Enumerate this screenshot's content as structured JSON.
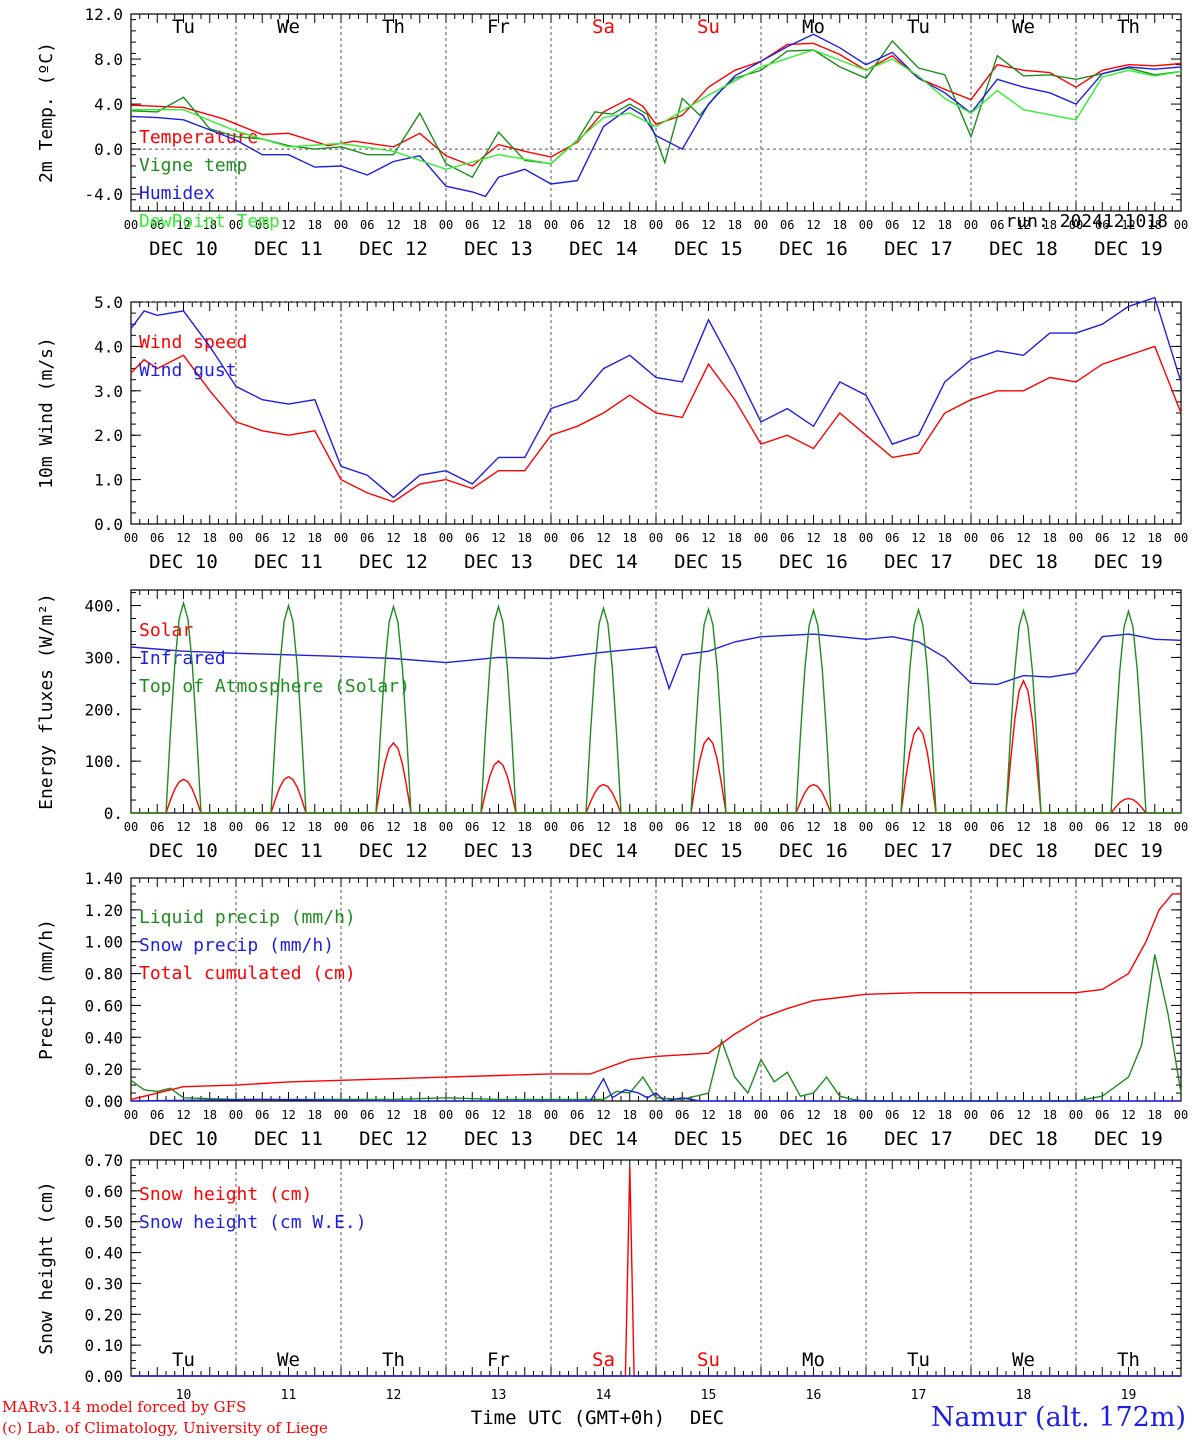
{
  "colors": {
    "red": "#ff0000",
    "green": "#1e8c1e",
    "blue": "#1f1fe0",
    "lightgreen": "#33ee33"
  },
  "days": [
    "Tu",
    "We",
    "Th",
    "Fr",
    "Sa",
    "Su",
    "Mo",
    "Tu",
    "We",
    "Th"
  ],
  "weekend_day_indices": [
    4,
    5
  ],
  "date_labels": [
    "DEC 10",
    "DEC 11",
    "DEC 12",
    "DEC 13",
    "DEC 14",
    "DEC 15",
    "DEC 16",
    "DEC 17",
    "DEC 18",
    "DEC 19"
  ],
  "hour_ticks": [
    "00",
    "06",
    "12",
    "18"
  ],
  "bottom_day_numbers": [
    "10",
    "11",
    "12",
    "13",
    "14",
    "15",
    "16",
    "17",
    "18",
    "19"
  ],
  "bottom_axis_label": "Time UTC (GMT+0h)",
  "bottom_axis_month": "DEC",
  "credits": [
    "MARv3.14 model forced by GFS",
    "(c) Lab. of Climatology, University of Liege"
  ],
  "station": "Namur (alt. 172m)",
  "run_label": "run: 2024121018",
  "chart_data": [
    {
      "id": "temp",
      "type": "line",
      "ylabel": "2m Temp. (ºC)",
      "ylim": [
        -5.5,
        12.0
      ],
      "yticks": [
        12.0,
        8.0,
        4.0,
        0.0,
        -4.0
      ],
      "ytick_labels": [
        "12.0",
        "8.0",
        "4.0",
        "0.0",
        "-4.0"
      ],
      "ref_line": 0.0,
      "x_unit": "hours since DEC 10 00 UTC",
      "xlim": [
        0,
        240
      ],
      "series": [
        {
          "name": "Temperature",
          "color": "red",
          "x": [
            0,
            12,
            21,
            30,
            36,
            45,
            51,
            60,
            66,
            72,
            78,
            84,
            90,
            96,
            102,
            108,
            114,
            117,
            120,
            126,
            132,
            138,
            144,
            150,
            156,
            162,
            168,
            174,
            180,
            186,
            192,
            198,
            204,
            210,
            216,
            222,
            228,
            234,
            240
          ],
          "y": [
            3.9,
            3.7,
            2.7,
            1.3,
            1.4,
            0.3,
            0.7,
            0.2,
            1.4,
            -0.6,
            -1.5,
            0.4,
            -0.2,
            -0.7,
            0.6,
            3.3,
            4.5,
            3.8,
            2.2,
            3.0,
            5.5,
            7.0,
            7.8,
            9.3,
            9.4,
            8.4,
            7.0,
            8.3,
            6.3,
            5.3,
            4.4,
            7.5,
            7.0,
            6.8,
            5.5,
            7.0,
            7.5,
            7.4,
            7.6
          ]
        },
        {
          "name": "Vigne temp",
          "color": "green",
          "x": [
            0,
            6,
            12,
            18,
            24,
            30,
            36,
            42,
            48,
            54,
            60,
            66,
            72,
            78,
            84,
            90,
            96,
            102,
            106,
            110,
            114,
            118,
            122,
            126,
            130,
            134,
            138,
            144,
            150,
            156,
            162,
            168,
            174,
            180,
            186,
            192,
            198,
            204,
            210,
            216,
            222,
            228,
            234,
            240
          ],
          "y": [
            3.4,
            3.3,
            4.6,
            1.8,
            1.1,
            0.9,
            0.3,
            0.0,
            0.2,
            -0.5,
            -0.5,
            3.2,
            -1.3,
            -2.5,
            1.5,
            -1.0,
            -1.3,
            0.8,
            3.3,
            3.1,
            4.0,
            3.1,
            -1.2,
            4.5,
            3.0,
            4.9,
            6.3,
            7.0,
            8.7,
            8.8,
            7.3,
            6.3,
            9.6,
            7.2,
            6.6,
            1.1,
            8.3,
            6.5,
            6.6,
            6.2,
            6.7,
            7.2,
            6.6,
            6.9
          ]
        },
        {
          "name": "Humidex",
          "color": "blue",
          "x": [
            0,
            6,
            12,
            18,
            24,
            30,
            36,
            42,
            48,
            54,
            60,
            66,
            72,
            78,
            81,
            84,
            90,
            96,
            102,
            108,
            114,
            117,
            120,
            126,
            132,
            138,
            144,
            150,
            156,
            162,
            168,
            174,
            180,
            186,
            192,
            198,
            204,
            210,
            216,
            222,
            228,
            234,
            240
          ],
          "y": [
            2.9,
            2.8,
            2.6,
            1.7,
            0.8,
            -0.5,
            -0.5,
            -1.6,
            -1.5,
            -2.3,
            -1.1,
            -0.6,
            -3.3,
            -3.8,
            -4.2,
            -2.5,
            -1.8,
            -3.1,
            -2.8,
            2.0,
            3.7,
            3.0,
            1.2,
            0.0,
            4.0,
            6.5,
            7.8,
            9.1,
            10.2,
            9.0,
            7.5,
            8.6,
            6.3,
            5.0,
            3.2,
            6.2,
            5.5,
            5.0,
            4.0,
            6.7,
            7.3,
            7.1,
            7.3
          ]
        },
        {
          "name": "DewPoint Temp",
          "color": "lightgreen",
          "x": [
            0,
            12,
            24,
            36,
            48,
            60,
            72,
            84,
            96,
            108,
            114,
            120,
            132,
            144,
            156,
            168,
            174,
            180,
            186,
            192,
            198,
            204,
            216,
            222,
            228,
            234,
            240
          ],
          "y": [
            3.5,
            3.5,
            1.6,
            0.2,
            0.5,
            -0.2,
            -1.8,
            -0.5,
            -1.3,
            2.8,
            3.2,
            2.0,
            4.8,
            7.3,
            8.8,
            7.0,
            8.0,
            6.5,
            4.5,
            3.2,
            5.2,
            3.5,
            2.6,
            6.4,
            7.0,
            6.5,
            6.9
          ]
        }
      ]
    },
    {
      "id": "wind",
      "type": "line",
      "ylabel": "10m Wind (m/s)",
      "ylim": [
        0.0,
        5.0
      ],
      "yticks": [
        5.0,
        4.0,
        3.0,
        2.0,
        1.0,
        0.0
      ],
      "ytick_labels": [
        "5.0",
        "4.0",
        "3.0",
        "2.0",
        "1.0",
        "0.0"
      ],
      "ref_line": 5.0,
      "x_unit": "hours since DEC 10 00 UTC",
      "xlim": [
        0,
        240
      ],
      "series": [
        {
          "name": "Wind speed",
          "color": "red",
          "x": [
            0,
            3,
            6,
            12,
            18,
            24,
            30,
            36,
            42,
            48,
            54,
            60,
            66,
            72,
            78,
            84,
            90,
            96,
            102,
            108,
            114,
            120,
            126,
            132,
            138,
            144,
            150,
            156,
            162,
            168,
            174,
            180,
            186,
            192,
            198,
            204,
            210,
            216,
            222,
            228,
            234,
            240
          ],
          "y": [
            3.4,
            3.7,
            3.5,
            3.8,
            3.0,
            2.3,
            2.1,
            2.0,
            2.1,
            1.0,
            0.7,
            0.5,
            0.9,
            1.0,
            0.8,
            1.2,
            1.2,
            2.0,
            2.2,
            2.5,
            2.9,
            2.5,
            2.4,
            3.6,
            2.8,
            1.8,
            2.0,
            1.7,
            2.5,
            2.0,
            1.5,
            1.6,
            2.5,
            2.8,
            3.0,
            3.0,
            3.3,
            3.2,
            3.6,
            3.8,
            4.0,
            2.5
          ]
        },
        {
          "name": "Wind gust",
          "color": "blue",
          "x": [
            0,
            3,
            6,
            12,
            18,
            24,
            30,
            36,
            42,
            48,
            54,
            60,
            66,
            72,
            78,
            84,
            90,
            96,
            102,
            108,
            114,
            120,
            126,
            132,
            138,
            144,
            150,
            156,
            162,
            168,
            174,
            180,
            186,
            192,
            198,
            204,
            210,
            216,
            222,
            228,
            234,
            240
          ],
          "y": [
            4.4,
            4.8,
            4.7,
            4.8,
            4.0,
            3.1,
            2.8,
            2.7,
            2.8,
            1.3,
            1.1,
            0.6,
            1.1,
            1.2,
            0.9,
            1.5,
            1.5,
            2.6,
            2.8,
            3.5,
            3.8,
            3.3,
            3.2,
            4.6,
            3.5,
            2.3,
            2.6,
            2.2,
            3.2,
            2.9,
            1.8,
            2.0,
            3.2,
            3.7,
            3.9,
            3.8,
            4.3,
            4.3,
            4.5,
            4.9,
            5.1,
            3.2
          ]
        }
      ]
    },
    {
      "id": "energy",
      "type": "line",
      "ylabel": "Energy fluxes (W/m²)",
      "ylim": [
        0,
        430
      ],
      "yticks": [
        400,
        300,
        200,
        100,
        0
      ],
      "ytick_labels": [
        "400.",
        "300.",
        "200.",
        "100.",
        "0."
      ],
      "x_unit": "hours since DEC 10 00 UTC",
      "xlim": [
        0,
        240
      ],
      "solar_noon_hour": 12,
      "daylight_start_hour": 8,
      "daylight_end_hour": 16,
      "series": [
        {
          "name": "Solar",
          "color": "red",
          "type": "daily_peaks",
          "peaks": [
            65,
            70,
            135,
            100,
            55,
            145,
            55,
            165,
            255,
            28
          ]
        },
        {
          "name": "Infrared",
          "color": "blue",
          "x": [
            0,
            12,
            24,
            36,
            48,
            60,
            72,
            84,
            96,
            108,
            114,
            120,
            123,
            126,
            132,
            138,
            144,
            156,
            168,
            174,
            180,
            186,
            192,
            198,
            204,
            210,
            216,
            222,
            228,
            234,
            240
          ],
          "y": [
            320,
            312,
            308,
            305,
            302,
            298,
            290,
            300,
            298,
            310,
            315,
            320,
            240,
            305,
            312,
            330,
            340,
            345,
            335,
            340,
            330,
            300,
            250,
            248,
            265,
            262,
            270,
            340,
            345,
            335,
            333
          ]
        },
        {
          "name": "Top of Atmosphere (Solar)",
          "color": "green",
          "type": "daily_peaks",
          "peaks": [
            405,
            400,
            398,
            398,
            395,
            393,
            391,
            392,
            390,
            389
          ]
        }
      ]
    },
    {
      "id": "precip",
      "type": "line",
      "ylabel": "Precip (mm/h)",
      "ylim": [
        0.0,
        1.4
      ],
      "yticks": [
        1.4,
        1.2,
        1.0,
        0.8,
        0.6,
        0.4,
        0.2,
        0.0
      ],
      "ytick_labels": [
        "1.40",
        "1.20",
        "1.00",
        "0.80",
        "0.60",
        "0.40",
        "0.20",
        "0.00"
      ],
      "x_unit": "hours since DEC 10 00 UTC",
      "xlim": [
        0,
        240
      ],
      "series": [
        {
          "name": "Liquid precip (mm/h)",
          "color": "green",
          "x": [
            0,
            3,
            6,
            9,
            12,
            24,
            36,
            48,
            60,
            72,
            84,
            96,
            108,
            111,
            114,
            117,
            120,
            126,
            132,
            135,
            138,
            141,
            144,
            147,
            150,
            153,
            156,
            159,
            162,
            165,
            168,
            174,
            180,
            192,
            204,
            216,
            222,
            228,
            231,
            234,
            237,
            240
          ],
          "y": [
            0.13,
            0.07,
            0.06,
            0.08,
            0.02,
            0.01,
            0.01,
            0.01,
            0.01,
            0.02,
            0.01,
            0.01,
            0.01,
            0.06,
            0.05,
            0.15,
            0.02,
            0.01,
            0.05,
            0.38,
            0.15,
            0.05,
            0.26,
            0.12,
            0.18,
            0.03,
            0.05,
            0.15,
            0.03,
            0.01,
            0.0,
            0.0,
            0.0,
            0.0,
            0.0,
            0.0,
            0.03,
            0.15,
            0.35,
            0.92,
            0.55,
            0.05
          ]
        },
        {
          "name": "Snow precip (mm/h)",
          "color": "blue",
          "x": [
            0,
            30,
            60,
            90,
            105,
            108,
            110,
            113,
            116,
            118,
            120,
            122,
            126,
            130,
            150,
            180,
            210,
            240
          ],
          "y": [
            0.0,
            0.01,
            0.0,
            0.0,
            0.0,
            0.14,
            0.02,
            0.07,
            0.05,
            0.02,
            0.05,
            0.0,
            0.02,
            0.0,
            0.0,
            0.0,
            0.0,
            0.0
          ]
        },
        {
          "name": "Total cumulated (cm)",
          "color": "red",
          "x": [
            0,
            12,
            24,
            36,
            48,
            60,
            72,
            84,
            96,
            105,
            108,
            114,
            120,
            132,
            138,
            144,
            150,
            156,
            162,
            168,
            180,
            192,
            204,
            216,
            222,
            228,
            232,
            235,
            238,
            240
          ],
          "y": [
            0.01,
            0.09,
            0.1,
            0.12,
            0.13,
            0.14,
            0.15,
            0.16,
            0.17,
            0.17,
            0.2,
            0.26,
            0.28,
            0.3,
            0.42,
            0.52,
            0.58,
            0.63,
            0.65,
            0.67,
            0.68,
            0.68,
            0.68,
            0.68,
            0.7,
            0.8,
            1.0,
            1.2,
            1.3,
            1.3
          ]
        }
      ]
    },
    {
      "id": "snow",
      "type": "line",
      "ylabel": "Snow height (cm)",
      "ylim": [
        0.0,
        0.7
      ],
      "yticks": [
        0.7,
        0.6,
        0.5,
        0.4,
        0.3,
        0.2,
        0.1,
        0.0
      ],
      "ytick_labels": [
        "0.70",
        "0.60",
        "0.50",
        "0.40",
        "0.30",
        "0.20",
        "0.10",
        "0.00"
      ],
      "x_unit": "hours since DEC 10 00 UTC",
      "xlim": [
        0,
        240
      ],
      "series": [
        {
          "name": "Snow height (cm)",
          "color": "red",
          "x": [
            0,
            112,
            113,
            114,
            115,
            240
          ],
          "y": [
            0,
            0,
            0.0,
            0.68,
            0.0,
            0
          ]
        },
        {
          "name": "Snow height (cm W.E.)",
          "color": "blue",
          "x": [
            0,
            240
          ],
          "y": [
            0,
            0
          ]
        }
      ]
    }
  ]
}
